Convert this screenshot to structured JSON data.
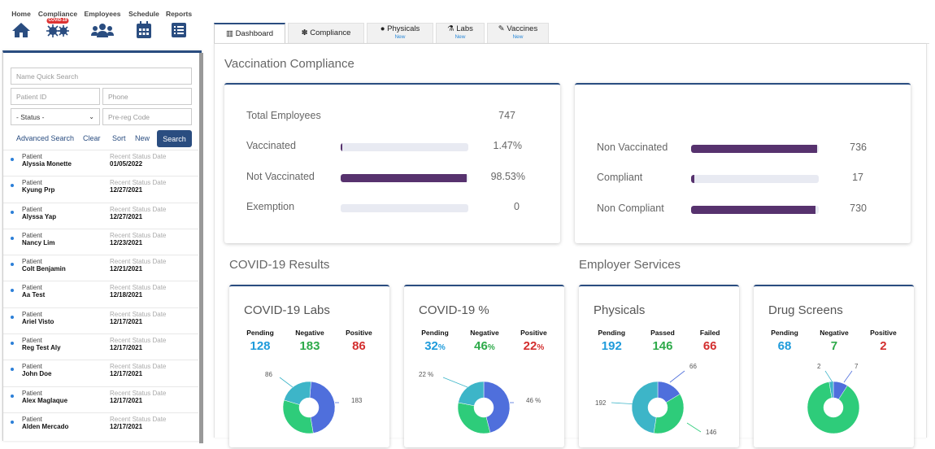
{
  "nav": [
    {
      "label": "Home",
      "icon": "home-icon"
    },
    {
      "label": "Compliance",
      "icon": "virus-icon",
      "badge": "COVID-19"
    },
    {
      "label": "Employees",
      "icon": "users-icon"
    },
    {
      "label": "Schedule",
      "icon": "calendar-icon"
    },
    {
      "label": "Reports",
      "icon": "list-icon"
    }
  ],
  "tabs": [
    {
      "label": "Dashboard",
      "icon": "chart-icon",
      "new": ""
    },
    {
      "label": "Compliance",
      "icon": "virus-icon",
      "new": ""
    },
    {
      "label": "Physicals",
      "icon": "circle-icon",
      "new": "New"
    },
    {
      "label": "Labs",
      "icon": "flask-icon",
      "new": "New"
    },
    {
      "label": "Vaccines",
      "icon": "syringe-icon",
      "new": "New"
    }
  ],
  "search": {
    "name_placeholder": "Name Quick Search",
    "patient_id_placeholder": "Patient ID",
    "phone_placeholder": "Phone",
    "status_value": "- Status -",
    "prereg_placeholder": "Pre-reg Code",
    "advanced": "Advanced Search",
    "clear": "Clear",
    "sort": "Sort",
    "new": "New",
    "search": "Search"
  },
  "patients": [
    {
      "label": "Patient",
      "name": "Alyssia Monette",
      "status_label": "Recent Status Date",
      "date": "01/05/2022"
    },
    {
      "label": "Patient",
      "name": "Kyung Prp",
      "status_label": "Recent Status Date",
      "date": "12/27/2021"
    },
    {
      "label": "Patient",
      "name": "Alyssa Yap",
      "status_label": "Recent Status Date",
      "date": "12/27/2021"
    },
    {
      "label": "Patient",
      "name": "Nancy Lim",
      "status_label": "Recent Status Date",
      "date": "12/23/2021"
    },
    {
      "label": "Patient",
      "name": "Colt Benjamin",
      "status_label": "Recent Status Date",
      "date": "12/21/2021"
    },
    {
      "label": "Patient",
      "name": "Aa Test",
      "status_label": "Recent Status Date",
      "date": "12/18/2021"
    },
    {
      "label": "Patient",
      "name": "Ariel Visto",
      "status_label": "Recent Status Date",
      "date": "12/17/2021"
    },
    {
      "label": "Patient",
      "name": "Reg Test Aly",
      "status_label": "Recent Status Date",
      "date": "12/17/2021"
    },
    {
      "label": "Patient",
      "name": "John Doe",
      "status_label": "Recent Status Date",
      "date": "12/17/2021"
    },
    {
      "label": "Patient",
      "name": "Alex Maglaque",
      "status_label": "Recent Status Date",
      "date": "12/17/2021"
    },
    {
      "label": "Patient",
      "name": "Alden Mercado",
      "status_label": "Recent Status Date",
      "date": "12/17/2021"
    }
  ],
  "vaccination": {
    "title": "Vaccination Compliance",
    "left": [
      {
        "label": "Total Employees",
        "value": "747",
        "bar": null
      },
      {
        "label": "Vaccinated",
        "value": "1.47%",
        "bar": 0.0147
      },
      {
        "label": "Not Vaccinated",
        "value": "98.53%",
        "bar": 0.9853
      },
      {
        "label": "Exemption",
        "value": "0",
        "bar": 0
      }
    ],
    "right": [
      {
        "label": "Non Vaccinated",
        "value": "736",
        "bar": 0.985
      },
      {
        "label": "Compliant",
        "value": "17",
        "bar": 0.023
      },
      {
        "label": "Non Compliant",
        "value": "730",
        "bar": 0.977
      }
    ]
  },
  "covid_results_title": "COVID-19 Results",
  "employer_services_title": "Employer Services",
  "cards": [
    {
      "title": "COVID-19 Labs",
      "stats": [
        {
          "label": "Pending",
          "value": "128",
          "color": "blue",
          "unit": ""
        },
        {
          "label": "Negative",
          "value": "183",
          "color": "green",
          "unit": ""
        },
        {
          "label": "Positive",
          "value": "86",
          "color": "red",
          "unit": ""
        }
      ],
      "chart_data": {
        "type": "pie",
        "values": [
          183,
          128,
          86
        ],
        "labels": [
          "183",
          "",
          "86"
        ]
      }
    },
    {
      "title": "COVID-19 %",
      "stats": [
        {
          "label": "Pending",
          "value": "32",
          "color": "blue",
          "unit": "%"
        },
        {
          "label": "Negative",
          "value": "46",
          "color": "green",
          "unit": "%"
        },
        {
          "label": "Positive",
          "value": "22",
          "color": "red",
          "unit": "%"
        }
      ],
      "chart_data": {
        "type": "pie",
        "values": [
          46,
          32,
          22
        ],
        "labels": [
          "46 %",
          "",
          "22 %"
        ]
      }
    },
    {
      "title": "Physicals",
      "stats": [
        {
          "label": "Pending",
          "value": "192",
          "color": "blue",
          "unit": ""
        },
        {
          "label": "Passed",
          "value": "146",
          "color": "green",
          "unit": ""
        },
        {
          "label": "Failed",
          "value": "66",
          "color": "red",
          "unit": ""
        }
      ],
      "chart_data": {
        "type": "pie",
        "values": [
          66,
          146,
          192
        ],
        "labels": [
          "66",
          "146",
          "192"
        ]
      }
    },
    {
      "title": "Drug Screens",
      "stats": [
        {
          "label": "Pending",
          "value": "68",
          "color": "blue",
          "unit": ""
        },
        {
          "label": "Negative",
          "value": "7",
          "color": "green",
          "unit": ""
        },
        {
          "label": "Positive",
          "value": "2",
          "color": "red",
          "unit": ""
        }
      ],
      "chart_data": {
        "type": "pie",
        "values": [
          7,
          68,
          2
        ],
        "labels": [
          "7",
          "",
          "2"
        ]
      }
    }
  ],
  "colors": {
    "primary": "#2a4d80",
    "bar": "#57326e",
    "pie_blue": "#4f6fdc",
    "pie_green": "#2ecc7a",
    "pie_teal": "#3db5c8"
  }
}
